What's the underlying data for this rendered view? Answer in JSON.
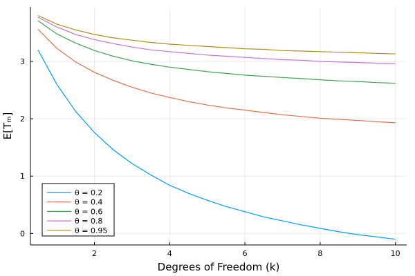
{
  "chart_data": {
    "type": "line",
    "title": "",
    "xlabel": "Degrees of Freedom (k)",
    "ylabel": "E[Tₘ]",
    "xlim": [
      0.3,
      10.3
    ],
    "ylim": [
      -0.2,
      3.95
    ],
    "xticks": [
      2,
      4,
      6,
      8,
      10
    ],
    "yticks": [
      0,
      1,
      2,
      3
    ],
    "grid": true,
    "legend_position": "bottom-left",
    "x": [
      0.5,
      1,
      1.5,
      2,
      2.5,
      3,
      3.5,
      4,
      4.5,
      5,
      5.5,
      6,
      6.5,
      7,
      7.5,
      8,
      8.5,
      9,
      9.5,
      10
    ],
    "series": [
      {
        "name": "θ = 0.2",
        "color": "#009AFA",
        "values": [
          3.2,
          2.6,
          2.13,
          1.76,
          1.46,
          1.22,
          1.02,
          0.84,
          0.7,
          0.58,
          0.47,
          0.38,
          0.29,
          0.22,
          0.15,
          0.09,
          0.03,
          -0.02,
          -0.06,
          -0.1
        ]
      },
      {
        "name": "θ = 0.4",
        "color": "#E36F47",
        "values": [
          3.56,
          3.23,
          2.99,
          2.81,
          2.67,
          2.55,
          2.45,
          2.37,
          2.3,
          2.24,
          2.19,
          2.15,
          2.11,
          2.07,
          2.04,
          2.01,
          1.99,
          1.97,
          1.95,
          1.93
        ]
      },
      {
        "name": "θ = 0.6",
        "color": "#3EA44E",
        "values": [
          3.71,
          3.48,
          3.32,
          3.19,
          3.09,
          3.01,
          2.95,
          2.9,
          2.86,
          2.82,
          2.79,
          2.76,
          2.74,
          2.72,
          2.7,
          2.68,
          2.66,
          2.65,
          2.63,
          2.62
        ]
      },
      {
        "name": "θ = 0.8",
        "color": "#C271D2",
        "values": [
          3.77,
          3.6,
          3.47,
          3.38,
          3.31,
          3.25,
          3.2,
          3.17,
          3.14,
          3.11,
          3.09,
          3.07,
          3.05,
          3.03,
          3.02,
          3.0,
          2.99,
          2.98,
          2.97,
          2.96
        ]
      },
      {
        "name": "θ = 0.95",
        "color": "#AC8D18",
        "values": [
          3.8,
          3.65,
          3.55,
          3.47,
          3.41,
          3.37,
          3.33,
          3.3,
          3.28,
          3.26,
          3.24,
          3.22,
          3.21,
          3.19,
          3.18,
          3.17,
          3.16,
          3.15,
          3.14,
          3.13
        ]
      }
    ]
  }
}
